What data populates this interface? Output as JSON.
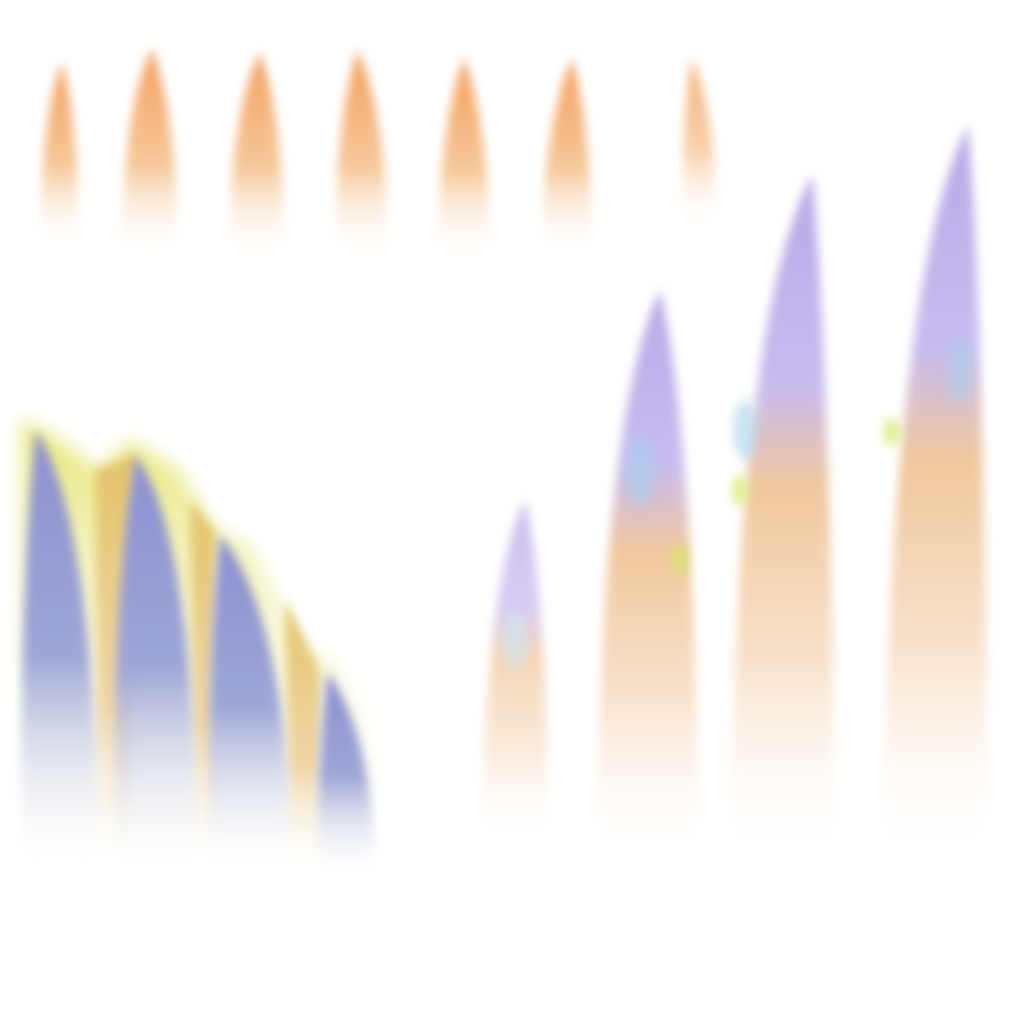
{
  "sheet": {
    "kind": "texture-atlas",
    "background": "#ffffff",
    "palette": {
      "orange": "#f4a86a",
      "orange_light": "#f9d2a8",
      "purple": "#8f94cf",
      "lavender": "#c5b8ec",
      "ice_blue": "#a9d4ef",
      "yellow_glow": "#e6e06a",
      "green_glow": "#d6ea6a"
    },
    "sprites": [
      "orange-spike-row",
      "purple-blade-cluster",
      "crystal-spike-row"
    ]
  }
}
